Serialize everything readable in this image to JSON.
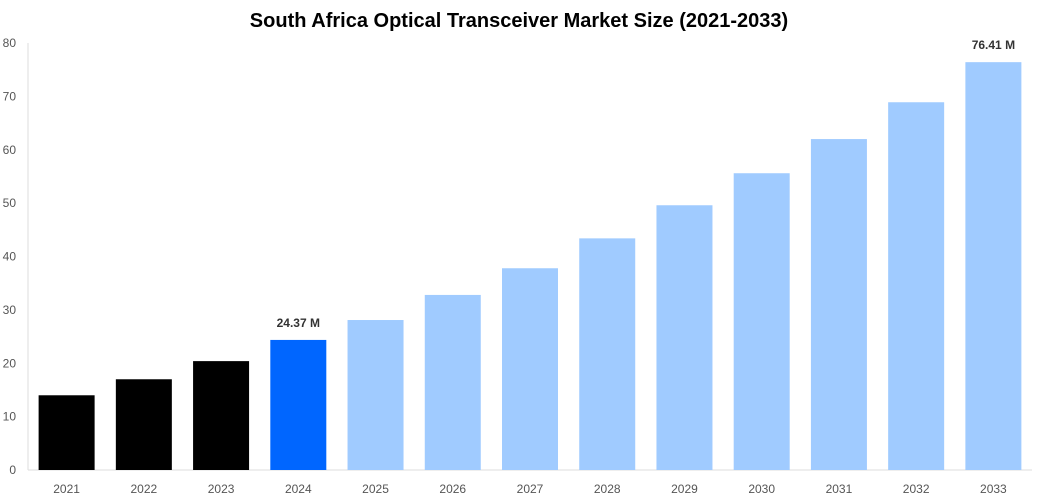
{
  "chart_data": {
    "type": "bar",
    "title": "South Africa Optical Transceiver Market Size (2021-2033)",
    "xlabel": "",
    "ylabel": "",
    "ylim": [
      0,
      80
    ],
    "yticks": [
      0,
      10,
      20,
      30,
      40,
      50,
      60,
      70,
      80
    ],
    "grid": false,
    "categories": [
      "2021",
      "2022",
      "2023",
      "2024",
      "2025",
      "2026",
      "2027",
      "2028",
      "2029",
      "2030",
      "2031",
      "2032",
      "2033"
    ],
    "values": [
      14.0,
      17.0,
      20.4,
      24.37,
      28.1,
      32.8,
      37.8,
      43.4,
      49.6,
      55.6,
      62.0,
      68.9,
      76.41
    ],
    "bar_colors": [
      "#000000",
      "#000000",
      "#000000",
      "#0066ff",
      "#a0cbff",
      "#a0cbff",
      "#a0cbff",
      "#a0cbff",
      "#a0cbff",
      "#a0cbff",
      "#a0cbff",
      "#a0cbff",
      "#a0cbff"
    ],
    "data_labels": [
      {
        "index": 3,
        "text": "24.37 M"
      },
      {
        "index": 12,
        "text": "76.41 M"
      }
    ]
  }
}
